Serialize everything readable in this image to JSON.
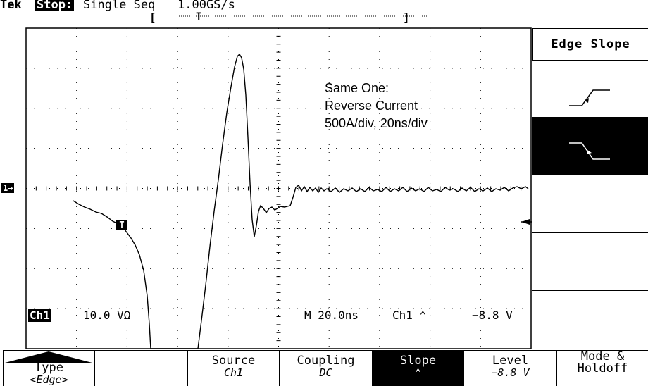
{
  "header": {
    "brand": "Tek",
    "state": "Stop:",
    "acq_mode": "Single Seq",
    "sample_rate": "1.00GS/s"
  },
  "annotation": {
    "lines": [
      "Same One:",
      "Reverse Current",
      "500A/div, 20ns/div"
    ]
  },
  "readouts": {
    "channel_label": "Ch1",
    "channel_scale": "10.0 VΩ",
    "timebase": "M 20.0ns",
    "trigger_source": "Ch1 ⌃",
    "trigger_level": "−8.8 V"
  },
  "markers": {
    "channel": "1→",
    "trigger": "T"
  },
  "side_menu": {
    "title": "Edge Slope",
    "options": [
      {
        "name": "rising",
        "selected": false
      },
      {
        "name": "falling",
        "selected": true
      }
    ]
  },
  "bottom_menu": [
    {
      "label": "Type",
      "value": "<Edge>"
    },
    {
      "label": "",
      "value": ""
    },
    {
      "label": "Source",
      "value": "Ch1"
    },
    {
      "label": "Coupling",
      "value": "DC"
    },
    {
      "label": "Slope",
      "value": "⌃"
    },
    {
      "label": "Level",
      "value": "−8.8 V"
    },
    {
      "label": "Mode & Holdoff",
      "value": ""
    }
  ],
  "colors": {
    "background": "#ffffff",
    "foreground": "#000000"
  },
  "icons": [
    "rising-edge-icon",
    "falling-edge-icon",
    "trigger-level-arrow-icon",
    "menu-up-arrow-icon"
  ]
}
